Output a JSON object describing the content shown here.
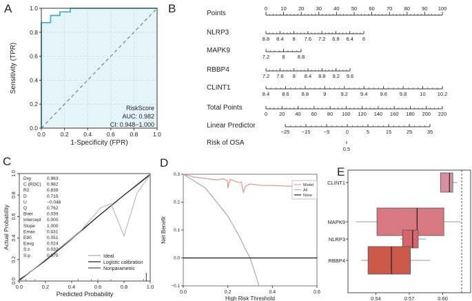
{
  "chart_data": [
    {
      "panel": "A",
      "type": "line",
      "xlabel": "1-Specificity (FPR)",
      "ylabel": "Sensitivity (TPR)",
      "xlim": [
        0,
        1
      ],
      "ylim": [
        0,
        1
      ],
      "xticks": [
        "0.0",
        "0.2",
        "0.4",
        "0.6",
        "0.8",
        "1.0"
      ],
      "yticks": [
        "0.0",
        "0.2",
        "0.4",
        "0.6",
        "0.8",
        "1.0"
      ],
      "roc": {
        "x": [
          0,
          0,
          0.08,
          0.08,
          0.16,
          0.16,
          0.25,
          0.25,
          1.0
        ],
        "y": [
          0,
          0.88,
          0.88,
          0.94,
          0.94,
          0.97,
          0.97,
          1.0,
          1.0
        ]
      },
      "diagonal": {
        "x": [
          0,
          1
        ],
        "y": [
          0,
          1
        ]
      },
      "annotations": [
        "RiskScore",
        "AUC: 0.982",
        "CI: 0.948−1.000"
      ],
      "colors": {
        "roc": "#41b3c4",
        "fill": "#e4f4f8",
        "diagonal": "#888888"
      }
    },
    {
      "panel": "B",
      "type": "table",
      "title": "Nomogram",
      "rows": [
        {
          "label": "Points",
          "ticks": [
            "0",
            "10",
            "20",
            "30",
            "40",
            "50",
            "60",
            "70",
            "80",
            "90",
            "100"
          ]
        },
        {
          "label": "NLRP3",
          "ticks": [
            "8.8",
            "8.4",
            "8",
            "7.6",
            "7.2",
            "6.8",
            "6.4",
            "6"
          ]
        },
        {
          "label": "MAPK9",
          "ticks": [
            "7.2",
            "8",
            "8.8"
          ]
        },
        {
          "label": "RBBP4",
          "ticks": [
            "7.2",
            "7.6",
            "8",
            "8.4",
            "8.8",
            "9.2",
            "9.6"
          ]
        },
        {
          "label": "CLINT1",
          "ticks": [
            "8.4",
            "8.6",
            "8.8",
            "9",
            "9.2",
            "9.4",
            "9.6",
            "9.8",
            "10",
            "10.2"
          ]
        },
        {
          "label": "Total Points",
          "ticks": [
            "0",
            "20",
            "40",
            "60",
            "80",
            "100",
            "120",
            "140",
            "160",
            "180",
            "200",
            "220"
          ]
        },
        {
          "label": "Linear Predictor",
          "ticks": [
            "−25",
            "−15",
            "−5",
            "0",
            "5",
            "15",
            "25",
            "35"
          ]
        },
        {
          "label": "Risk of OSA",
          "ticks": [
            "0.5"
          ]
        }
      ]
    },
    {
      "panel": "C",
      "type": "line",
      "xlabel": "Predicted Probability",
      "ylabel": "Actual Probability",
      "xlim": [
        0,
        1
      ],
      "ylim": [
        0,
        1
      ],
      "xticks": [
        "0.0",
        "0.2",
        "0.4",
        "0.6",
        "0.8",
        "1.0"
      ],
      "yticks": [
        "0.0",
        "0.2",
        "0.4",
        "0.6",
        "0.8",
        "1.0"
      ],
      "stats": [
        {
          "k": "Dxy",
          "v": "0.963"
        },
        {
          "k": "C (ROC)",
          "v": "0.982"
        },
        {
          "k": "R2",
          "v": "0.839"
        },
        {
          "k": "D",
          "v": "0.715"
        },
        {
          "k": "U",
          "v": "−0.048"
        },
        {
          "k": "Q",
          "v": "0.762"
        },
        {
          "k": "Brier",
          "v": "0.039"
        },
        {
          "k": "Intercept",
          "v": "0.000"
        },
        {
          "k": "Slope",
          "v": "1.000"
        },
        {
          "k": "Emax",
          "v": "0.431"
        },
        {
          "k": "E90",
          "v": "0.051"
        },
        {
          "k": "Eavg",
          "v": "0.024"
        },
        {
          "k": "S:z",
          "v": "0.032"
        },
        {
          "k": "S:p",
          "v": "0.975"
        }
      ],
      "series": [
        {
          "name": "Ideal",
          "x": [
            0,
            1
          ],
          "y": [
            0,
            1
          ],
          "color": "#9a9a9a"
        },
        {
          "name": "Logistic calibration",
          "x": [
            0,
            0.2,
            0.4,
            0.6,
            0.8,
            1.0
          ],
          "y": [
            0.01,
            0.19,
            0.39,
            0.6,
            0.8,
            0.99
          ],
          "color": "#222222"
        },
        {
          "name": "Nonparametric",
          "x": [
            0.0,
            0.08,
            0.18,
            0.3,
            0.45,
            0.55,
            0.62,
            0.7,
            0.8,
            0.85,
            0.9,
            1.0
          ],
          "y": [
            0.02,
            0.08,
            0.18,
            0.3,
            0.44,
            0.58,
            0.68,
            0.72,
            0.42,
            0.62,
            0.82,
            0.99
          ],
          "color": "#b0b0b0"
        }
      ],
      "legend": [
        "Ideal",
        "Logistic calibration",
        "Nonparametric"
      ]
    },
    {
      "panel": "D",
      "type": "line",
      "xlabel": "High Risk Threshold",
      "ylabel": "Net Benefit",
      "xlim": [
        0,
        0.6
      ],
      "ylim": [
        -0.1,
        0.3
      ],
      "xticks": [
        "0.0",
        "0.2",
        "0.4",
        "0.6"
      ],
      "yticks": [
        "−0.1",
        "0.0",
        "0.1",
        "0.2",
        "0.3"
      ],
      "series": [
        {
          "name": "Model",
          "x": [
            0,
            0.05,
            0.1,
            0.15,
            0.2,
            0.25,
            0.3,
            0.35,
            0.4,
            0.45,
            0.5,
            0.55,
            0.6
          ],
          "y": [
            0.3,
            0.29,
            0.285,
            0.28,
            0.275,
            0.27,
            0.265,
            0.26,
            0.26,
            0.258,
            0.257,
            0.256,
            0.255
          ],
          "color": "#e8908a"
        },
        {
          "name": "All",
          "x": [
            0,
            0.1,
            0.2,
            0.25,
            0.28,
            0.3,
            0.32,
            0.34
          ],
          "y": [
            0.3,
            0.25,
            0.15,
            0.08,
            0.03,
            0.0,
            -0.05,
            -0.1
          ],
          "color": "#a8a8a8"
        },
        {
          "name": "None",
          "x": [
            0,
            0.6
          ],
          "y": [
            0,
            0
          ],
          "color": "#111111"
        }
      ],
      "legend": [
        "Model",
        "All",
        "None"
      ]
    },
    {
      "panel": "E",
      "type": "bar",
      "subtype": "boxplot",
      "categories": [
        "CLINT1",
        "MAPK9",
        "NLRP3",
        "RBBP4"
      ],
      "xticks": [
        "0.54",
        "0.57",
        "0.60"
      ],
      "xlim": [
        0.515,
        0.625
      ],
      "reference_line": 0.617,
      "boxes": [
        {
          "name": "CLINT1",
          "whisker_low": 0.598,
          "q1": 0.598,
          "median": 0.606,
          "q3": 0.609,
          "whisker_high": 0.613,
          "color": "#d98fa0"
        },
        {
          "name": "MAPK9",
          "whisker_low": 0.522,
          "q1": 0.541,
          "median": 0.577,
          "q3": 0.601,
          "whisker_high": 0.616,
          "color": "#d87880"
        },
        {
          "name": "NLRP3",
          "whisker_low": 0.562,
          "q1": 0.564,
          "median": 0.573,
          "q3": 0.578,
          "whisker_high": 0.585,
          "color": "#d5656a"
        },
        {
          "name": "RBBP4",
          "whisker_low": 0.527,
          "q1": 0.533,
          "median": 0.554,
          "q3": 0.571,
          "whisker_high": 0.589,
          "color": "#cc5a4a"
        }
      ]
    }
  ],
  "panel_letters": [
    "A",
    "B",
    "C",
    "D",
    "E"
  ]
}
